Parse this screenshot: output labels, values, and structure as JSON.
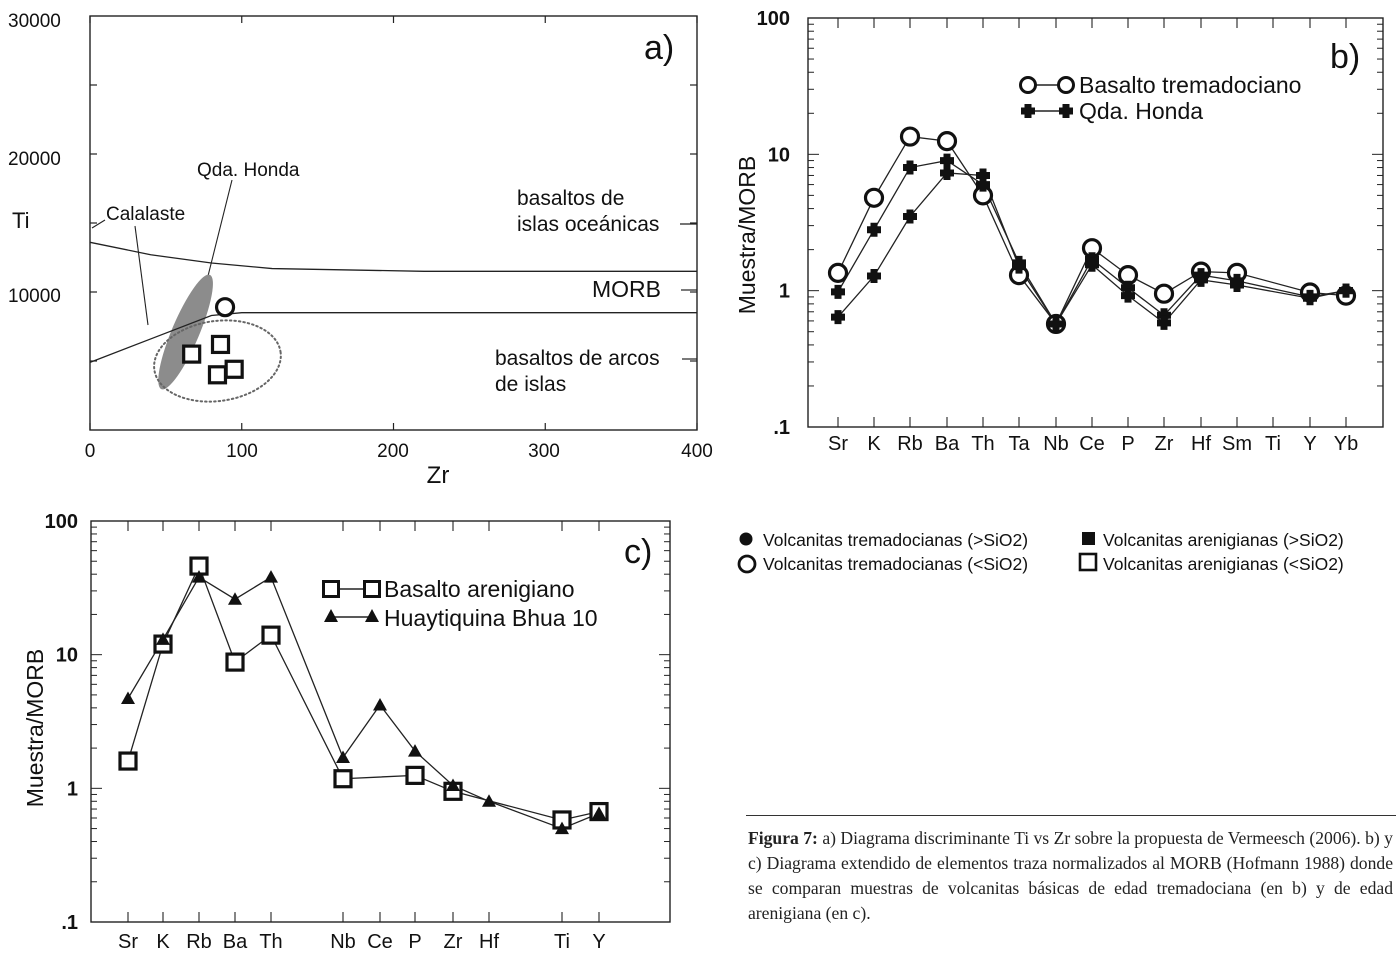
{
  "chart_data": [
    {
      "id": "a",
      "type": "scatter",
      "panel_label": "a)",
      "xlabel": "Zr",
      "ylabel": "Ti",
      "xlim": [
        0,
        400
      ],
      "ylim": [
        0,
        30000
      ],
      "x_ticks": [
        "0",
        "100",
        "200",
        "300",
        "400"
      ],
      "y_ticks": [
        "30000",
        "20000",
        "10000"
      ],
      "regions": [
        "basaltos de islas oceánicas",
        "MORB",
        "basaltos de arcos de islas"
      ],
      "region_lines": {
        "upper": [
          [
            0,
            13600
          ],
          [
            40,
            12700
          ],
          [
            80,
            12100
          ],
          [
            120,
            11700
          ],
          [
            220,
            11500
          ],
          [
            400,
            11500
          ]
        ],
        "lower": [
          [
            0,
            4900
          ],
          [
            40,
            6600
          ],
          [
            80,
            8300
          ],
          [
            100,
            8500
          ],
          [
            400,
            8500
          ]
        ]
      },
      "fields": [
        {
          "label": "Calalaste",
          "style": "dotted-ellipse",
          "center": [
            84,
            5000
          ],
          "radius": [
            42,
            2900
          ]
        },
        {
          "label": "Qda. Honda",
          "style": "grey-ellipse",
          "center": [
            63,
            7100
          ],
          "radius": [
            9,
            4500
          ]
        }
      ],
      "points": [
        {
          "marker": "open-circle",
          "x": 89,
          "y": 8900
        },
        {
          "marker": "open-square",
          "x": 67,
          "y": 5500
        },
        {
          "marker": "open-square",
          "x": 86,
          "y": 6200
        },
        {
          "marker": "open-square",
          "x": 84,
          "y": 4000
        },
        {
          "marker": "open-square",
          "x": 95,
          "y": 4400
        }
      ]
    },
    {
      "id": "b",
      "type": "line",
      "panel_label": "b)",
      "yscale": "log",
      "ylabel": "Muestra/MORB",
      "ylim": [
        0.1,
        100
      ],
      "y_ticks": [
        "100",
        "10",
        "1",
        ".1"
      ],
      "categories": [
        "Sr",
        "K",
        "Rb",
        "Ba",
        "Th",
        "Ta",
        "Nb",
        "Ce",
        "P",
        "Zr",
        "Hf",
        "Sm",
        "Ti",
        "Y",
        "Yb"
      ],
      "series": [
        {
          "name": "Basalto tremadociano",
          "marker": "open-circle",
          "values": [
            1.35,
            4.8,
            13.5,
            12.5,
            5.0,
            1.3,
            0.57,
            2.05,
            1.3,
            0.95,
            1.38,
            1.35,
            null,
            0.97,
            0.92
          ]
        },
        {
          "name": "Qda. Honda",
          "marker": "cross",
          "values": [
            0.98,
            2.8,
            8.0,
            9.0,
            6.0,
            1.6,
            0.57,
            1.7,
            1.05,
            0.66,
            1.3,
            1.18,
            null,
            0.9,
            1.0
          ]
        },
        {
          "name": "",
          "marker": "cross",
          "values": [
            0.64,
            1.28,
            3.5,
            7.3,
            7.0,
            1.5,
            0.57,
            1.55,
            0.92,
            0.58,
            1.2,
            1.1,
            null,
            0.88,
            1.0
          ]
        }
      ]
    },
    {
      "id": "c",
      "type": "line",
      "panel_label": "c)",
      "yscale": "log",
      "ylabel": "Muestra/MORB",
      "ylim": [
        0.1,
        100
      ],
      "y_ticks": [
        "100",
        "10",
        "1",
        ".1"
      ],
      "categories": [
        "Sr",
        "K",
        "Rb",
        "Ba",
        "Th",
        "Nb",
        "Ce",
        "P",
        "Zr",
        "Hf",
        "Ti",
        "Y"
      ],
      "series": [
        {
          "name": "Basalto arenigiano",
          "marker": "open-square",
          "values": [
            1.6,
            12.0,
            46.0,
            8.8,
            14.0,
            1.18,
            null,
            1.25,
            0.95,
            null,
            0.58,
            0.67
          ]
        },
        {
          "name": "Huaytiquina Bhua 10",
          "marker": "filled-triangle",
          "values": [
            4.7,
            13.0,
            38.0,
            26.0,
            38.0,
            1.7,
            4.2,
            1.9,
            1.05,
            0.8,
            0.5,
            0.65
          ]
        }
      ]
    }
  ],
  "legend": [
    {
      "symbol": "filled-circle",
      "label": "Volcanitas tremadocianas (>SiO2)"
    },
    {
      "symbol": "filled-square",
      "label": "Volcanitas arenigianas (>SiO2)"
    },
    {
      "symbol": "open-circle",
      "label": "Volcanitas tremadocianas (<SiO2)"
    },
    {
      "symbol": "open-square",
      "label": "Volcanitas arenigianas (<SiO2)"
    }
  ],
  "caption": {
    "bold": "Figura 7:",
    "text": " a) Diagrama discriminante Ti vs Zr sobre la propuesta de Vermeesch (2006). b) y c)  Diagrama extendido de elementos traza normalizados al MORB (Hofmann 1988) donde se comparan muestras de volcanitas básicas de edad tremadociana (en b) y de edad arenigiana (en c)."
  }
}
